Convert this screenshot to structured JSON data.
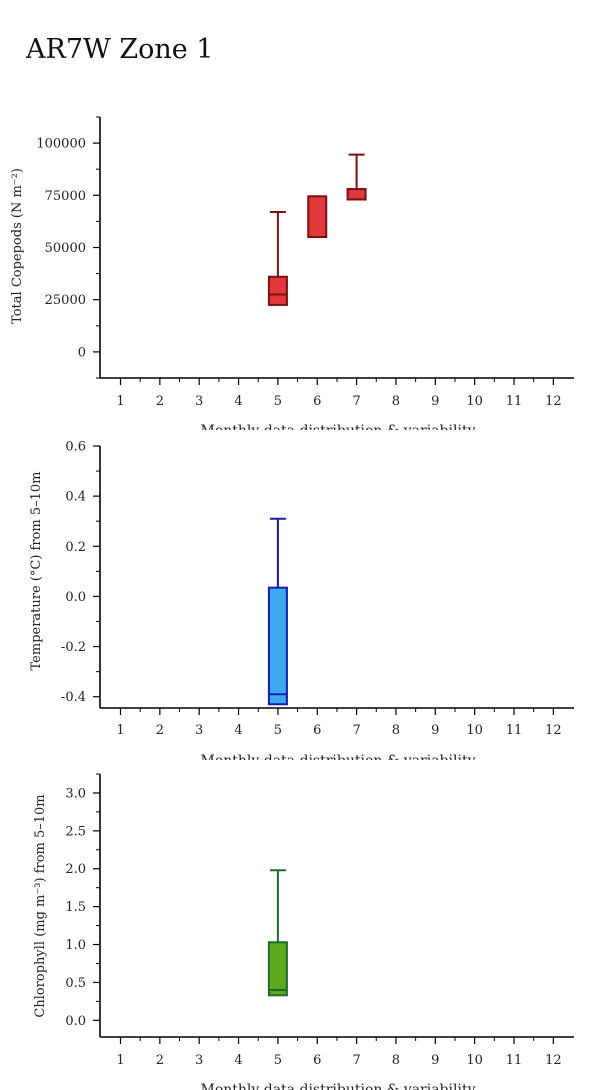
{
  "title": "AR7W Zone 1",
  "chart_data": [
    {
      "type": "box",
      "ylabel": "Total Copepods (N m⁻²)",
      "xlabel": "Monthly data distribution & variability",
      "categories": [
        "1",
        "2",
        "3",
        "4",
        "5",
        "6",
        "7",
        "8",
        "9",
        "10",
        "11",
        "12"
      ],
      "ylim": [
        -12500,
        112500
      ],
      "yticks": [
        0,
        25000,
        50000,
        75000,
        100000
      ],
      "yticklabels": [
        "0",
        "25000",
        "50000",
        "75000",
        "100000"
      ],
      "colors": {
        "fill": "#e0383b",
        "stroke": "#7a1010"
      },
      "boxes": [
        {
          "month": 5,
          "q1": 22500,
          "median": 27500,
          "q3": 36000,
          "whisker_low": 22500,
          "whisker_high": 67000
        },
        {
          "month": 6,
          "q1": 55000,
          "median": 55000,
          "q3": 74500,
          "whisker_low": 55000,
          "whisker_high": 74500
        },
        {
          "month": 7,
          "q1": 73000,
          "median": 73000,
          "q3": 78000,
          "whisker_low": 73000,
          "whisker_high": 94500
        }
      ]
    },
    {
      "type": "box",
      "ylabel": "Temperature (°C) from 5–10m",
      "xlabel": "Monthly data distribution & variability",
      "categories": [
        "1",
        "2",
        "3",
        "4",
        "5",
        "6",
        "7",
        "8",
        "9",
        "10",
        "11",
        "12"
      ],
      "ylim": [
        -0.445,
        0.6
      ],
      "yticks": [
        -0.4,
        -0.2,
        0.0,
        0.2,
        0.4,
        0.6
      ],
      "yticklabels": [
        "-0.4",
        "-0.2",
        "0.0",
        "0.2",
        "0.4",
        "0.6"
      ],
      "colors": {
        "fill": "#3aa9f0",
        "stroke": "#1a1aa8"
      },
      "boxes": [
        {
          "month": 5,
          "q1": -0.43,
          "median": -0.39,
          "q3": 0.035,
          "whisker_low": -0.43,
          "whisker_high": 0.31
        }
      ]
    },
    {
      "type": "box",
      "ylabel": "Chlorophyll (mg m⁻³) from 5–10m",
      "xlabel": "Monthly data distribution & variability",
      "categories": [
        "1",
        "2",
        "3",
        "4",
        "5",
        "6",
        "7",
        "8",
        "9",
        "10",
        "11",
        "12"
      ],
      "ylim": [
        -0.22,
        3.25
      ],
      "yticks": [
        0.0,
        0.5,
        1.0,
        1.5,
        2.0,
        2.5,
        3.0
      ],
      "yticklabels": [
        "0.0",
        "0.5",
        "1.0",
        "1.5",
        "2.0",
        "2.5",
        "3.0"
      ],
      "colors": {
        "fill": "#5aaa1a",
        "stroke": "#1e6a2a"
      },
      "boxes": [
        {
          "month": 5,
          "q1": 0.33,
          "median": 0.4,
          "q3": 1.03,
          "whisker_low": 0.33,
          "whisker_high": 1.98
        }
      ]
    }
  ]
}
